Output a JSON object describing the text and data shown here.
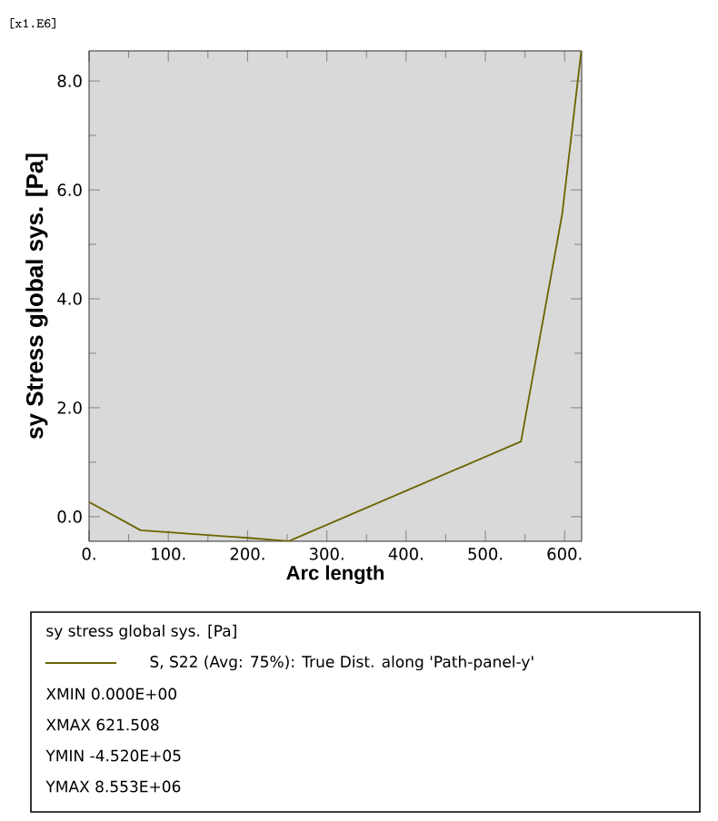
{
  "chart_data": {
    "type": "line",
    "xlabel": "Arc length",
    "ylabel": "sy  Stress global sys. [Pa]",
    "legend_title": "sy stress  global sys. [Pa]",
    "x": [
      0,
      65,
      200,
      252,
      545,
      597,
      621
    ],
    "series": [
      {
        "name": "S, S22 (Avg: 75%): True Dist. along 'Path-panel-y'",
        "color": "#6b6400",
        "values": [
          0.27,
          -0.25,
          -0.39,
          -0.45,
          1.38,
          5.56,
          8.55
        ]
      }
    ],
    "xlim": [
      0,
      621.508
    ],
    "ylim": [
      -0.452,
      8.553
    ],
    "xticks": [
      {
        "value": 0,
        "label": "0."
      },
      {
        "value": 100,
        "label": "100."
      },
      {
        "value": 200,
        "label": "200."
      },
      {
        "value": 300,
        "label": "300."
      },
      {
        "value": 400,
        "label": "400."
      },
      {
        "value": 500,
        "label": "500."
      },
      {
        "value": 600,
        "label": "600."
      }
    ],
    "yticks": [
      {
        "value": 0,
        "label": "0.0"
      },
      {
        "value": 2,
        "label": "2.0"
      },
      {
        "value": 4,
        "label": "4.0"
      },
      {
        "value": 6,
        "label": "6.0"
      },
      {
        "value": 8,
        "label": "8.0"
      }
    ],
    "annotations": [
      "[x1.E6]",
      "XMIN   0.000E+00",
      "XMAX  621.508",
      "YMIN  -4.520E+05",
      "YMAX  8.553E+06"
    ],
    "grid": false,
    "legend": "bottom",
    "marker": "none",
    "line_style": "solid"
  }
}
